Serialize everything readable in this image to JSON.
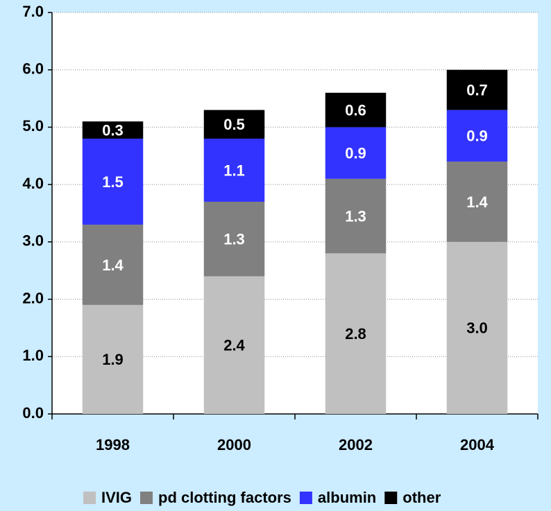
{
  "chart_data": {
    "type": "stacked_bar",
    "categories": [
      "1998",
      "2000",
      "2002",
      "2004"
    ],
    "series": [
      {
        "name": "IVIG",
        "color": "#c0c0c0",
        "label_color": "#000000",
        "values": [
          1.9,
          2.4,
          2.8,
          3.0
        ],
        "value_labels": [
          "1.9",
          "2.4",
          "2.8",
          "3.0"
        ]
      },
      {
        "name": "pd clotting factors",
        "color": "#808080",
        "label_color": "#ffffff",
        "values": [
          1.4,
          1.3,
          1.3,
          1.4
        ],
        "value_labels": [
          "1.4",
          "1.3",
          "1.3",
          "1.4"
        ]
      },
      {
        "name": "albumin",
        "color": "#3333ff",
        "label_color": "#ffffff",
        "values": [
          1.5,
          1.1,
          0.9,
          0.9
        ],
        "value_labels": [
          "1.5",
          "1.1",
          "0.9",
          "0.9"
        ]
      },
      {
        "name": "other",
        "color": "#000000",
        "label_color": "#ffffff",
        "values": [
          0.3,
          0.5,
          0.6,
          0.7
        ],
        "value_labels": [
          "0.3",
          "0.5",
          "0.6",
          "0.7"
        ]
      }
    ],
    "ylim": [
      0,
      7
    ],
    "yticks": [
      {
        "value": 0,
        "label": "0.0"
      },
      {
        "value": 1,
        "label": "1.0"
      },
      {
        "value": 2,
        "label": "2.0"
      },
      {
        "value": 3,
        "label": "3.0"
      },
      {
        "value": 4,
        "label": "4.0"
      },
      {
        "value": 5,
        "label": "5.0"
      },
      {
        "value": 6,
        "label": "6.0"
      },
      {
        "value": 7,
        "label": "7.0"
      }
    ],
    "grid": true,
    "legend": "bottom"
  }
}
